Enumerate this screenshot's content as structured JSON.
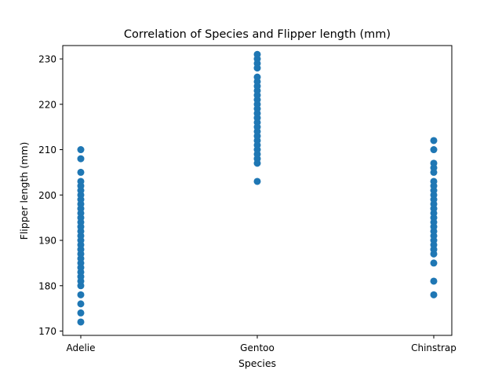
{
  "chart_data": {
    "type": "scatter",
    "title": "Correlation of Species and Flipper length (mm)",
    "xlabel": "Species",
    "ylabel": "Flipper length (mm)",
    "categories": [
      "Adelie",
      "Gentoo",
      "Chinstrap"
    ],
    "yticks": [
      170,
      180,
      190,
      200,
      210,
      220,
      230
    ],
    "ylim": [
      169.05,
      232.95
    ],
    "grid": false,
    "marker_color": "#1f77b4",
    "points": [
      {
        "category": "Adelie",
        "values": [
          172,
          174,
          176,
          178,
          180,
          181,
          182,
          183,
          184,
          185,
          186,
          187,
          188,
          189,
          190,
          191,
          192,
          193,
          194,
          195,
          196,
          197,
          198,
          199,
          200,
          201,
          202,
          203,
          205,
          208,
          210
        ]
      },
      {
        "category": "Gentoo",
        "values": [
          203,
          207,
          208,
          209,
          210,
          211,
          212,
          213,
          214,
          215,
          216,
          217,
          218,
          219,
          220,
          221,
          222,
          223,
          224,
          225,
          226,
          228,
          229,
          230,
          231
        ]
      },
      {
        "category": "Chinstrap",
        "values": [
          178,
          181,
          185,
          187,
          188,
          189,
          190,
          191,
          192,
          193,
          194,
          195,
          196,
          197,
          198,
          199,
          200,
          201,
          202,
          203,
          205,
          206,
          207,
          210,
          212
        ]
      }
    ]
  }
}
